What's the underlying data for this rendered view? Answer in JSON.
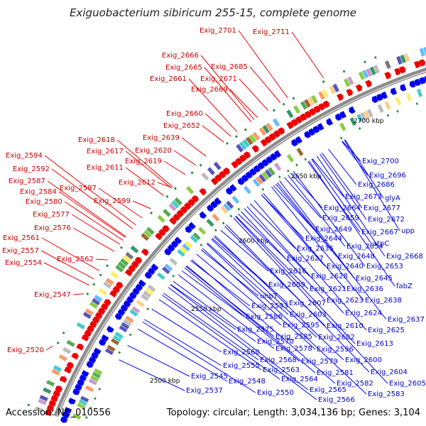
{
  "title": "Exiguobacterium sibiricum 255-15, complete genome",
  "accession": "Accession: NC_010556",
  "summary": "Topology: circular; Length: 3,034,136 bp; Genes: 3,104",
  "colors": {
    "forward": "#ee0000",
    "reverse": "#0000ee",
    "backbone": "#8c8c8c",
    "label_forward": "#cc0000",
    "label_reverse": "#0000cc"
  },
  "scale": [
    {
      "text": "2700 kbp"
    },
    {
      "text": "2650 kbp"
    },
    {
      "text": "2600 kbp"
    },
    {
      "text": "2550 kbp"
    },
    {
      "text": "2500 kbp"
    }
  ],
  "forward_labels": [
    {
      "text": "Exig_2711"
    },
    {
      "text": "Exig_2701"
    },
    {
      "text": "Exig_2685"
    },
    {
      "text": "Exig_2666"
    },
    {
      "text": "Exig_2665"
    },
    {
      "text": "Exig_2671"
    },
    {
      "text": "Exig_2661"
    },
    {
      "text": "Exig_2669"
    },
    {
      "text": "Exig_2660"
    },
    {
      "text": "Exig_2652"
    },
    {
      "text": "Exig_2639"
    },
    {
      "text": "Exig_2618"
    },
    {
      "text": "Exig_2620"
    },
    {
      "text": "Exig_2617"
    },
    {
      "text": "Exig_2619"
    },
    {
      "text": "Exig_2594"
    },
    {
      "text": "Exig_2611"
    },
    {
      "text": "Exig_2592"
    },
    {
      "text": "Exig_2612"
    },
    {
      "text": "Exig_2587"
    },
    {
      "text": "Exig_2597"
    },
    {
      "text": "Exig_2584"
    },
    {
      "text": "Exig_2599"
    },
    {
      "text": "Exig_2580"
    },
    {
      "text": "Exig_2577"
    },
    {
      "text": "Exig_2576"
    },
    {
      "text": "Exig_2561"
    },
    {
      "text": "Exig_2557"
    },
    {
      "text": "Exig_2562"
    },
    {
      "text": "Exig_2554"
    },
    {
      "text": "Exig_2547"
    },
    {
      "text": "Exig_2520"
    }
  ],
  "reverse_labels": [
    {
      "text": "Exig_2700"
    },
    {
      "text": "Exig_2696"
    },
    {
      "text": "Exig_2686"
    },
    {
      "text": "glyA"
    },
    {
      "text": "Exig_2673"
    },
    {
      "text": "Exig_2677"
    },
    {
      "text": "Exig_2664"
    },
    {
      "text": "Exig_2659"
    },
    {
      "text": "Exig_2672"
    },
    {
      "text": "Exig_2649"
    },
    {
      "text": "Exig_2667"
    },
    {
      "text": "upp"
    },
    {
      "text": "atpC"
    },
    {
      "text": "Exig_2644"
    },
    {
      "text": "Exig_2654"
    },
    {
      "text": "Exig_2635"
    },
    {
      "text": "Exig_2668"
    },
    {
      "text": "Exig_2648"
    },
    {
      "text": "Exig_2627"
    },
    {
      "text": "Exig_2640"
    },
    {
      "text": "Exig_2653"
    },
    {
      "text": "Exig_2616"
    },
    {
      "text": "Exig_2628"
    },
    {
      "text": "Exig_2645"
    },
    {
      "text": "Exig_2609"
    },
    {
      "text": "fabZ"
    },
    {
      "text": "Exig_2621"
    },
    {
      "text": "Exig_2636"
    },
    {
      "text": "uhpT"
    },
    {
      "text": "Exig_2607"
    },
    {
      "text": "Exig_2623"
    },
    {
      "text": "Exig_2638"
    },
    {
      "text": "Exig_2593"
    },
    {
      "text": "Exig_2586"
    },
    {
      "text": "Exig_2603"
    },
    {
      "text": "Exig_2624"
    },
    {
      "text": "Exig_2637"
    },
    {
      "text": "Exig_2595"
    },
    {
      "text": "Exig_2610"
    },
    {
      "text": "Exig_2575"
    },
    {
      "text": "Exig_2625"
    },
    {
      "text": "Exig_2585"
    },
    {
      "text": "Exig_2602"
    },
    {
      "text": "Exig_2570"
    },
    {
      "text": "Exig_2613"
    },
    {
      "text": "Exig_2578"
    },
    {
      "text": "Exig_2596"
    },
    {
      "text": "Exig_2560"
    },
    {
      "text": "Exig_2579"
    },
    {
      "text": "Exig_2600"
    },
    {
      "text": "Exig_2568"
    },
    {
      "text": "Exig_2555"
    },
    {
      "text": "Exig_2563"
    },
    {
      "text": "Exig_2581"
    },
    {
      "text": "Exig_2604"
    },
    {
      "text": "Exig_2545"
    },
    {
      "text": "Exig_2548"
    },
    {
      "text": "Exig_2564"
    },
    {
      "text": "Exig_2582"
    },
    {
      "text": "Exig_2605"
    },
    {
      "text": "Exig_2537"
    },
    {
      "text": "Exig_2550"
    },
    {
      "text": "Exig_2565"
    },
    {
      "text": "Exig_2566"
    },
    {
      "text": "Exig_2583"
    }
  ]
}
